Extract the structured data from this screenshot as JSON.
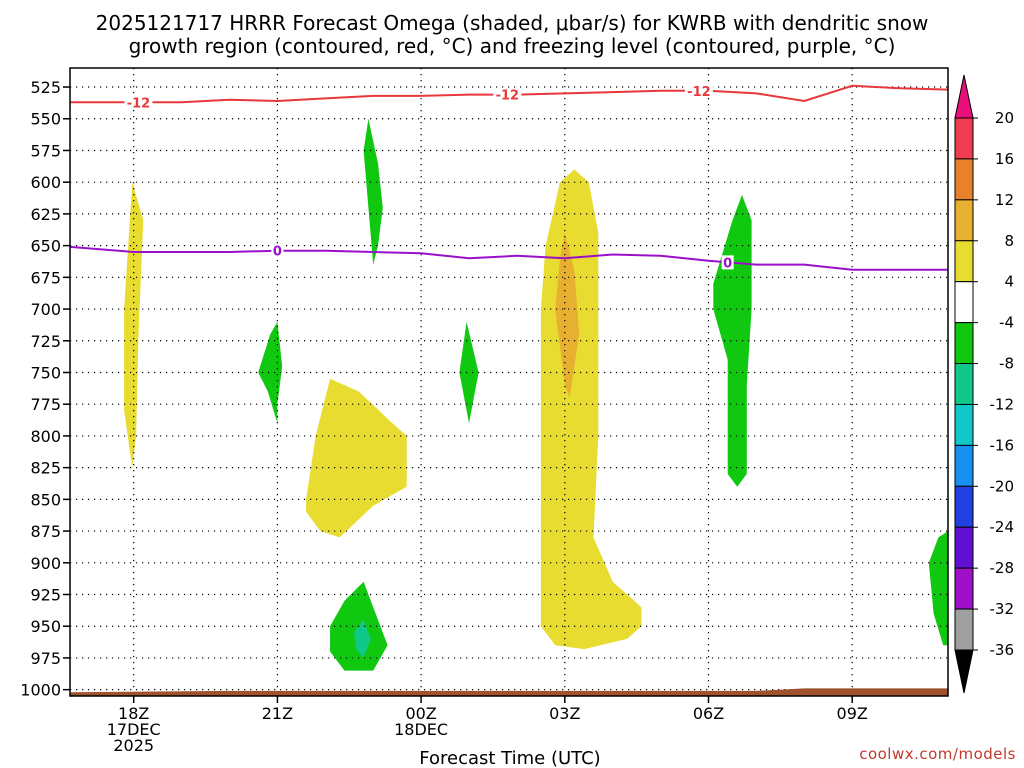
{
  "title_line1": "2025121717 HRRR Forecast Omega (shaded, μbar/s) for KWRB with dendritic snow",
  "title_line2": "growth region (contoured, red, °C) and freezing level (contoured, purple, °C)",
  "xlabel": "Forecast Time (UTC)",
  "credit": "coolwx.com/models",
  "chart_data": {
    "type": "time-height cross section",
    "x_unit": "forecast hour (0 = 17Z 17 Dec 2025)",
    "xlim": [
      -0.33,
      18.0
    ],
    "y_unit": "hPa",
    "ylim": [
      1005,
      510
    ],
    "y_ticks": [
      525,
      550,
      575,
      600,
      625,
      650,
      675,
      700,
      725,
      750,
      775,
      800,
      825,
      850,
      875,
      900,
      925,
      950,
      975,
      1000
    ],
    "x_ticks": [
      {
        "hour": 1,
        "lines": [
          "18Z",
          "17DEC",
          "2025"
        ]
      },
      {
        "hour": 4,
        "lines": [
          "21Z"
        ]
      },
      {
        "hour": 7,
        "lines": [
          "00Z",
          "18DEC"
        ]
      },
      {
        "hour": 10,
        "lines": [
          "03Z"
        ]
      },
      {
        "hour": 13,
        "lines": [
          "06Z"
        ]
      },
      {
        "hour": 16,
        "lines": [
          "09Z"
        ]
      }
    ],
    "colorbar": {
      "levels": [
        20,
        16,
        12,
        8,
        4,
        -4,
        -8,
        -12,
        -16,
        -20,
        -24,
        -28,
        -32,
        -36
      ],
      "colors": [
        "#f03c50",
        "#e8822a",
        "#e8b030",
        "#e8dc30",
        "#ffffff",
        "#10c810",
        "#10c888",
        "#10c8c8",
        "#1890f0",
        "#2040e0",
        "#6010d0",
        "#a010c8",
        "#a0a0a0"
      ],
      "over_color": "#e8107a",
      "under_color": "#000000"
    },
    "omega_regions": [
      {
        "name": "positive-omega-1800",
        "level": "4 to 8",
        "color": "#e8dc30",
        "points": [
          [
            0.97,
            825
          ],
          [
            0.8,
            780
          ],
          [
            0.8,
            700
          ],
          [
            0.97,
            600
          ],
          [
            1.2,
            630
          ],
          [
            1.1,
            720
          ],
          [
            1.05,
            800
          ]
        ]
      },
      {
        "name": "positive-omega-2130",
        "level": "4 to 8",
        "color": "#e8dc30",
        "points": [
          [
            4.6,
            850
          ],
          [
            4.8,
            800
          ],
          [
            5.1,
            755
          ],
          [
            5.7,
            765
          ],
          [
            6.4,
            790
          ],
          [
            6.7,
            800
          ],
          [
            6.7,
            840
          ],
          [
            6.0,
            855
          ],
          [
            5.3,
            880
          ],
          [
            4.9,
            875
          ],
          [
            4.6,
            860
          ]
        ]
      },
      {
        "name": "positive-omega-0300",
        "level": "4 to 8",
        "color": "#e8dc30",
        "points": [
          [
            9.5,
            875
          ],
          [
            9.5,
            850
          ],
          [
            9.5,
            700
          ],
          [
            9.6,
            650
          ],
          [
            9.9,
            600
          ],
          [
            10.2,
            590
          ],
          [
            10.5,
            600
          ],
          [
            10.7,
            640
          ],
          [
            10.7,
            800
          ],
          [
            10.6,
            880
          ],
          [
            11.0,
            915
          ],
          [
            11.6,
            935
          ],
          [
            11.6,
            950
          ],
          [
            11.3,
            960
          ],
          [
            10.4,
            968
          ],
          [
            9.8,
            965
          ],
          [
            9.5,
            950
          ],
          [
            9.5,
            900
          ]
        ]
      },
      {
        "name": "positive-omega-0300-core",
        "level": "8 to 12",
        "color": "#e8b030",
        "points": [
          [
            10.0,
            760
          ],
          [
            9.8,
            700
          ],
          [
            9.9,
            660
          ],
          [
            10.0,
            640
          ],
          [
            10.2,
            670
          ],
          [
            10.3,
            720
          ],
          [
            10.1,
            770
          ]
        ]
      },
      {
        "name": "negative-omega-2300-upper",
        "level": "-4 to -8",
        "color": "#10c810",
        "points": [
          [
            6.0,
            665
          ],
          [
            5.9,
            620
          ],
          [
            5.8,
            575
          ],
          [
            5.9,
            550
          ],
          [
            6.1,
            585
          ],
          [
            6.2,
            620
          ],
          [
            6.1,
            650
          ]
        ]
      },
      {
        "name": "negative-omega-2100",
        "level": "-4 to -8",
        "color": "#10c810",
        "points": [
          [
            3.6,
            750
          ],
          [
            3.85,
            720
          ],
          [
            4.0,
            710
          ],
          [
            4.1,
            745
          ],
          [
            4.0,
            775
          ],
          [
            4.0,
            790
          ],
          [
            3.8,
            765
          ]
        ]
      },
      {
        "name": "negative-omega-0100",
        "level": "-4 to -8",
        "color": "#10c810",
        "points": [
          [
            7.8,
            750
          ],
          [
            7.95,
            710
          ],
          [
            8.2,
            750
          ],
          [
            8.0,
            790
          ]
        ]
      },
      {
        "name": "negative-omega-0700",
        "level": "-4 to -8",
        "color": "#10c810",
        "points": [
          [
            13.1,
            680
          ],
          [
            13.5,
            630
          ],
          [
            13.7,
            610
          ],
          [
            13.9,
            630
          ],
          [
            13.9,
            700
          ],
          [
            13.8,
            760
          ],
          [
            13.8,
            830
          ],
          [
            13.6,
            840
          ],
          [
            13.4,
            830
          ],
          [
            13.4,
            740
          ],
          [
            13.1,
            700
          ]
        ]
      },
      {
        "name": "negative-omega-2300-low",
        "level": "-4 to -8",
        "color": "#10c810",
        "points": [
          [
            5.1,
            950
          ],
          [
            5.4,
            930
          ],
          [
            5.8,
            915
          ],
          [
            6.1,
            945
          ],
          [
            6.3,
            965
          ],
          [
            6.0,
            985
          ],
          [
            5.4,
            985
          ],
          [
            5.1,
            970
          ]
        ]
      },
      {
        "name": "negative-omega-2300-low-core",
        "level": "-8 to -12",
        "color": "#10c888",
        "points": [
          [
            5.6,
            955
          ],
          [
            5.8,
            945
          ],
          [
            5.95,
            960
          ],
          [
            5.8,
            975
          ],
          [
            5.65,
            968
          ]
        ]
      },
      {
        "name": "negative-omega-1100",
        "level": "-4 to -8",
        "color": "#10c810",
        "points": [
          [
            17.6,
            900
          ],
          [
            17.8,
            880
          ],
          [
            18.0,
            875
          ],
          [
            18.0,
            965
          ],
          [
            17.9,
            965
          ],
          [
            17.7,
            940
          ]
        ]
      }
    ],
    "contours": [
      {
        "name": "dendritic-zone-contour",
        "label": "-12",
        "color": "#e8383c",
        "label_hours": [
          1.1,
          8.8,
          12.8
        ],
        "x": [
          -0.33,
          1,
          2,
          3,
          4,
          5,
          6,
          7,
          8,
          9,
          10,
          11,
          12,
          13,
          14,
          15,
          16,
          17,
          18
        ],
        "y": [
          537,
          537,
          537,
          535,
          536,
          534,
          532,
          532,
          531,
          531,
          530,
          529,
          528,
          528,
          530,
          536,
          524,
          526,
          527
        ]
      },
      {
        "name": "freezing-level-contour",
        "label": "0",
        "color": "#9a10c8",
        "label_hours": [
          4.0,
          13.4
        ],
        "x": [
          -0.33,
          1,
          2,
          3,
          4,
          5,
          6,
          7,
          8,
          9,
          10,
          11,
          12,
          13,
          14,
          15,
          16,
          17,
          18
        ],
        "y": [
          651,
          655,
          655,
          655,
          654,
          654,
          655,
          656,
          660,
          658,
          660,
          657,
          658,
          662,
          665,
          665,
          669,
          669,
          669
        ]
      }
    ],
    "terrain": {
      "name": "ground-surface",
      "color": "#a0522d",
      "x": [
        -0.33,
        3,
        6,
        9,
        12,
        14,
        15,
        18
      ],
      "y": [
        1002,
        1001,
        1001,
        1001,
        1001,
        1001,
        999,
        999
      ]
    }
  }
}
